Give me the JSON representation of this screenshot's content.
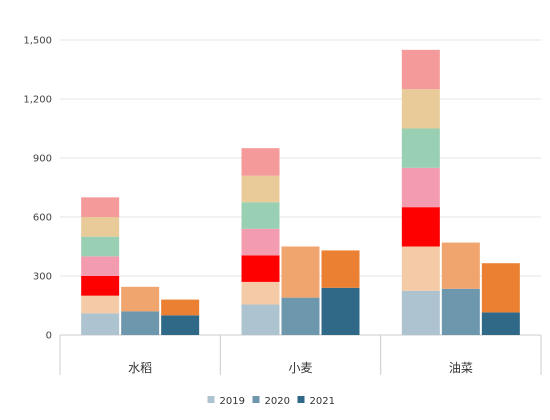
{
  "chart_data": {
    "type": "bar",
    "stacked": true,
    "categories": [
      "水稻",
      "小麦",
      "油菜"
    ],
    "ylim": [
      0,
      1500
    ],
    "yticks": [
      "0",
      "300",
      "600",
      "900",
      "1,200",
      "1,500"
    ],
    "grid": true,
    "legend": {
      "placement": "bottom",
      "items": [
        {
          "label": "2019",
          "color": "#adc3d0"
        },
        {
          "label": "2020",
          "color": "#6c97ad"
        },
        {
          "label": "2021",
          "color": "#2f6987"
        }
      ]
    },
    "groups": [
      {
        "category": "水稻",
        "bars": [
          {
            "name": "2019",
            "segments": [
              {
                "value": 110,
                "color": "#adc3d0"
              },
              {
                "value": 90,
                "color": "#f5cba7"
              },
              {
                "value": 100,
                "color": "#ff0000"
              },
              {
                "value": 100,
                "color": "#f49caf"
              },
              {
                "value": 100,
                "color": "#99cfb2"
              },
              {
                "value": 100,
                "color": "#e8cb98"
              },
              {
                "value": 100,
                "color": "#f49a9a"
              }
            ]
          },
          {
            "name": "2020",
            "segments": [
              {
                "value": 120,
                "color": "#6c97ad"
              },
              {
                "value": 125,
                "color": "#f0a46e"
              }
            ]
          },
          {
            "name": "2021",
            "segments": [
              {
                "value": 100,
                "color": "#2f6987"
              },
              {
                "value": 80,
                "color": "#eb8033"
              }
            ]
          }
        ]
      },
      {
        "category": "小麦",
        "bars": [
          {
            "name": "2019",
            "segments": [
              {
                "value": 155,
                "color": "#adc3d0"
              },
              {
                "value": 115,
                "color": "#f5cba7"
              },
              {
                "value": 135,
                "color": "#ff0000"
              },
              {
                "value": 135,
                "color": "#f49caf"
              },
              {
                "value": 135,
                "color": "#99cfb2"
              },
              {
                "value": 135,
                "color": "#e8cb98"
              },
              {
                "value": 140,
                "color": "#f49a9a"
              }
            ]
          },
          {
            "name": "2020",
            "segments": [
              {
                "value": 190,
                "color": "#6c97ad"
              },
              {
                "value": 260,
                "color": "#f0a46e"
              }
            ]
          },
          {
            "name": "2021",
            "segments": [
              {
                "value": 240,
                "color": "#2f6987"
              },
              {
                "value": 190,
                "color": "#eb8033"
              }
            ]
          }
        ]
      },
      {
        "category": "油菜",
        "bars": [
          {
            "name": "2019",
            "segments": [
              {
                "value": 225,
                "color": "#adc3d0"
              },
              {
                "value": 225,
                "color": "#f5cba7"
              },
              {
                "value": 200,
                "color": "#ff0000"
              },
              {
                "value": 200,
                "color": "#f49caf"
              },
              {
                "value": 200,
                "color": "#99cfb2"
              },
              {
                "value": 200,
                "color": "#e8cb98"
              },
              {
                "value": 200,
                "color": "#f49a9a"
              }
            ]
          },
          {
            "name": "2020",
            "segments": [
              {
                "value": 235,
                "color": "#6c97ad"
              },
              {
                "value": 235,
                "color": "#f0a46e"
              }
            ]
          },
          {
            "name": "2021",
            "segments": [
              {
                "value": 115,
                "color": "#2f6987"
              },
              {
                "value": 250,
                "color": "#eb8033"
              }
            ]
          }
        ]
      }
    ]
  }
}
